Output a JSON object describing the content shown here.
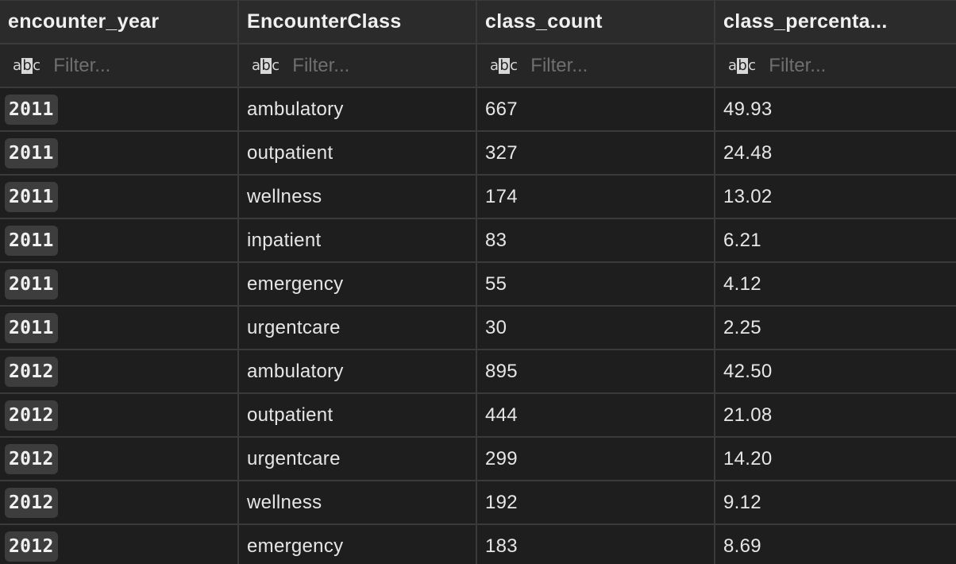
{
  "columns": [
    {
      "label": "encounter_year"
    },
    {
      "label": "EncounterClass"
    },
    {
      "label": "class_count"
    },
    {
      "label": "class_percenta..."
    }
  ],
  "filter": {
    "placeholder": "Filter...",
    "icon": "abc-type-icon",
    "icon_text": {
      "left": "a",
      "mid": "b",
      "right": "c"
    }
  },
  "rows": [
    {
      "year": "2011",
      "class": "ambulatory",
      "count": "667",
      "pct": "49.93"
    },
    {
      "year": "2011",
      "class": "outpatient",
      "count": "327",
      "pct": "24.48"
    },
    {
      "year": "2011",
      "class": "wellness",
      "count": "174",
      "pct": "13.02"
    },
    {
      "year": "2011",
      "class": "inpatient",
      "count": "83",
      "pct": "6.21"
    },
    {
      "year": "2011",
      "class": "emergency",
      "count": "55",
      "pct": "4.12"
    },
    {
      "year": "2011",
      "class": "urgentcare",
      "count": "30",
      "pct": "2.25"
    },
    {
      "year": "2012",
      "class": "ambulatory",
      "count": "895",
      "pct": "42.50"
    },
    {
      "year": "2012",
      "class": "outpatient",
      "count": "444",
      "pct": "21.08"
    },
    {
      "year": "2012",
      "class": "urgentcare",
      "count": "299",
      "pct": "14.20"
    },
    {
      "year": "2012",
      "class": "wellness",
      "count": "192",
      "pct": "9.12"
    },
    {
      "year": "2012",
      "class": "emergency",
      "count": "183",
      "pct": "8.69"
    }
  ]
}
